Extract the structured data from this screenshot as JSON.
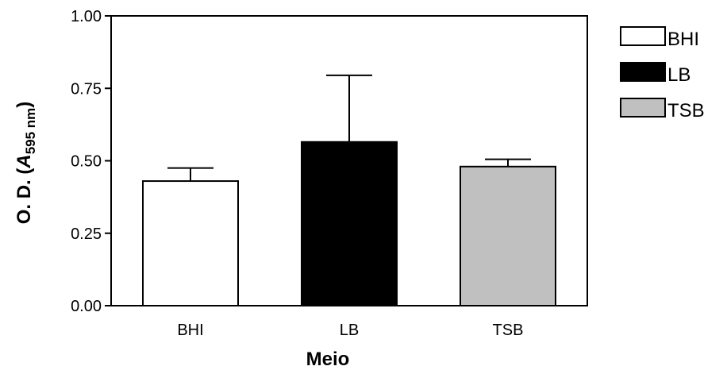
{
  "chart_data": {
    "type": "bar",
    "title": "",
    "xlabel": "Meio",
    "ylabel_parts": {
      "prefix": "O. D. (",
      "italic": "A",
      "subscript": "595 nm",
      "suffix": ")"
    },
    "categories": [
      "BHI",
      "LB",
      "TSB"
    ],
    "values": [
      0.43,
      0.565,
      0.48
    ],
    "errors": [
      0.045,
      0.23,
      0.025
    ],
    "colors": [
      "#ffffff",
      "#000000",
      "#c0c0c0"
    ],
    "ylim": [
      0,
      1.0
    ],
    "yticks": [
      0.0,
      0.25,
      0.5,
      0.75,
      1.0
    ],
    "ytick_labels": [
      "0.00",
      "0.25",
      "0.50",
      "0.75",
      "1.00"
    ],
    "legend": {
      "position": "right",
      "entries": [
        {
          "label": "BHI",
          "color": "#ffffff"
        },
        {
          "label": "LB",
          "color": "#000000"
        },
        {
          "label": "TSB",
          "color": "#c0c0c0"
        }
      ]
    },
    "grid": false
  }
}
